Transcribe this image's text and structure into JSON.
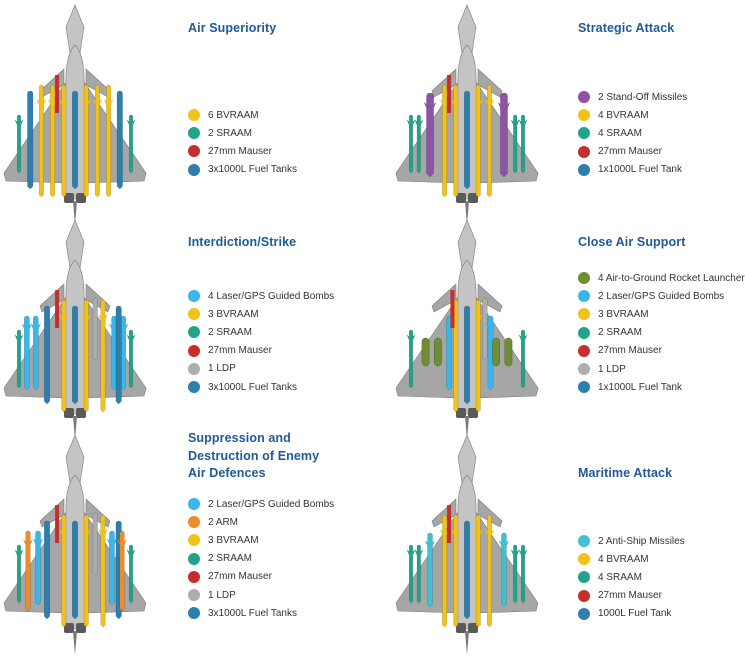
{
  "colors": {
    "title": "#1f5a99",
    "airframe": "#a6a6a6",
    "airframe_light": "#c4c4c4",
    "airframe_dark": "#7a7a7a"
  },
  "weapons": {
    "bvraam": {
      "color": "#f2c21b"
    },
    "sraam": {
      "color": "#21a48a"
    },
    "mauser": {
      "color": "#c62d2d"
    },
    "fuel_tank": {
      "color": "#2e7fad"
    },
    "stand_off": {
      "color": "#8d54a6"
    },
    "laser_gps": {
      "color": "#3cb5e8"
    },
    "ldp": {
      "color": "#adadad"
    },
    "rocket": {
      "color": "#6f8e35"
    },
    "arm": {
      "color": "#ee8b2a"
    },
    "anti_ship": {
      "color": "#41c0d4"
    }
  },
  "panels": [
    {
      "title": "Air Superiority",
      "legend": [
        {
          "label": "6 BVRAAM",
          "color": "#f2c21b"
        },
        {
          "label": "2 SRAAM",
          "color": "#21a48a"
        },
        {
          "label": "27mm Mauser",
          "color": "#c62d2d"
        },
        {
          "label": "3x1000L Fuel Tanks",
          "color": "#2e7fad"
        }
      ]
    },
    {
      "title": "Strategic Attack",
      "legend": [
        {
          "label": "2 Stand-Off Missiles",
          "color": "#8d54a6"
        },
        {
          "label": "4 BVRAAM",
          "color": "#f2c21b"
        },
        {
          "label": "4 SRAAM",
          "color": "#21a48a"
        },
        {
          "label": "27mm Mauser",
          "color": "#c62d2d"
        },
        {
          "label": "1x1000L Fuel Tank",
          "color": "#2e7fad"
        }
      ]
    },
    {
      "title": "Interdiction/Strike",
      "legend": [
        {
          "label": "4 Laser/GPS Guided Bombs",
          "color": "#3cb5e8"
        },
        {
          "label": "3 BVRAAM",
          "color": "#f2c21b"
        },
        {
          "label": "2 SRAAM",
          "color": "#21a48a"
        },
        {
          "label": "27mm Mauser",
          "color": "#c62d2d"
        },
        {
          "label": "1 LDP",
          "color": "#adadad"
        },
        {
          "label": "3x1000L Fuel Tanks",
          "color": "#2e7fad"
        }
      ]
    },
    {
      "title": "Close Air Support",
      "legend": [
        {
          "label": "4 Air-to-Ground Rocket Launcher",
          "color": "#6f8e35"
        },
        {
          "label": "2 Laser/GPS Guided Bombs",
          "color": "#3cb5e8"
        },
        {
          "label": "3 BVRAAM",
          "color": "#f2c21b"
        },
        {
          "label": "2 SRAAM",
          "color": "#21a48a"
        },
        {
          "label": "27mm Mauser",
          "color": "#c62d2d"
        },
        {
          "label": "1 LDP",
          "color": "#adadad"
        },
        {
          "label": "1x1000L Fuel Tank",
          "color": "#2e7fad"
        }
      ]
    },
    {
      "title_lines": [
        "Suppression and",
        "Destruction of Enemy",
        "Air Defences"
      ],
      "legend": [
        {
          "label": "2 Laser/GPS Guided Bombs",
          "color": "#3cb5e8"
        },
        {
          "label": "2 ARM",
          "color": "#ee8b2a"
        },
        {
          "label": "3 BVRAAM",
          "color": "#f2c21b"
        },
        {
          "label": "2 SRAAM",
          "color": "#21a48a"
        },
        {
          "label": "27mm Mauser",
          "color": "#c62d2d"
        },
        {
          "label": "1 LDP",
          "color": "#adadad"
        },
        {
          "label": "3x1000L Fuel Tanks",
          "color": "#2e7fad"
        }
      ]
    },
    {
      "title": "Maritime Attack",
      "legend": [
        {
          "label": "2 Anti-Ship Missiles",
          "color": "#41c0d4"
        },
        {
          "label": "4 BVRAAM",
          "color": "#f2c21b"
        },
        {
          "label": "4 SRAAM",
          "color": "#21a48a"
        },
        {
          "label": "27mm Mauser",
          "color": "#c62d2d"
        },
        {
          "label": "1000L Fuel Tank",
          "color": "#2e7fad"
        }
      ]
    }
  ],
  "loadouts": [
    [
      {
        "type": "sraam",
        "station": -5
      },
      {
        "type": "fuel_tank",
        "station": -4
      },
      {
        "type": "bvraam",
        "station": -3
      },
      {
        "type": "bvraam",
        "station": -2
      },
      {
        "type": "bvraam",
        "station": -1
      },
      {
        "type": "fuel_tank",
        "station": 0
      },
      {
        "type": "bvraam",
        "station": 1
      },
      {
        "type": "bvraam",
        "station": 2
      },
      {
        "type": "bvraam",
        "station": 3
      },
      {
        "type": "fuel_tank",
        "station": 4
      },
      {
        "type": "sraam",
        "station": 5
      },
      {
        "type": "mauser",
        "station": -1.6
      }
    ],
    [
      {
        "type": "sraam",
        "station": -5
      },
      {
        "type": "sraam",
        "station": -4.3
      },
      {
        "type": "stand_off",
        "station": -3.3
      },
      {
        "type": "bvraam",
        "station": -2
      },
      {
        "type": "bvraam",
        "station": -1
      },
      {
        "type": "fuel_tank",
        "station": 0
      },
      {
        "type": "bvraam",
        "station": 1
      },
      {
        "type": "bvraam",
        "station": 2
      },
      {
        "type": "stand_off",
        "station": 3.3
      },
      {
        "type": "sraam",
        "station": 4.3
      },
      {
        "type": "sraam",
        "station": 5
      },
      {
        "type": "mauser",
        "station": -1.6
      }
    ],
    [
      {
        "type": "sraam",
        "station": -5
      },
      {
        "type": "laser_gps",
        "station": -4.3
      },
      {
        "type": "laser_gps",
        "station": -3.5
      },
      {
        "type": "fuel_tank",
        "station": -2.5
      },
      {
        "type": "bvraam",
        "station": -1
      },
      {
        "type": "fuel_tank",
        "station": 0
      },
      {
        "type": "bvraam",
        "station": 1
      },
      {
        "type": "ldp",
        "station": 1.8
      },
      {
        "type": "bvraam",
        "station": 2.5
      },
      {
        "type": "laser_gps",
        "station": 3.5
      },
      {
        "type": "laser_gps",
        "station": 4.3
      },
      {
        "type": "fuel_tank",
        "station": 3.9
      },
      {
        "type": "sraam",
        "station": 5
      },
      {
        "type": "mauser",
        "station": -1.6
      }
    ],
    [
      {
        "type": "sraam",
        "station": -5
      },
      {
        "type": "rocket",
        "station": -3.7
      },
      {
        "type": "rocket",
        "station": -2.6
      },
      {
        "type": "laser_gps",
        "station": -1.6
      },
      {
        "type": "bvraam",
        "station": -1
      },
      {
        "type": "fuel_tank",
        "station": 0
      },
      {
        "type": "bvraam",
        "station": 1
      },
      {
        "type": "ldp",
        "station": 1.6
      },
      {
        "type": "laser_gps",
        "station": 2.1
      },
      {
        "type": "rocket",
        "station": 2.6
      },
      {
        "type": "rocket",
        "station": 3.7
      },
      {
        "type": "sraam",
        "station": 5
      },
      {
        "type": "mauser",
        "station": -1.3
      }
    ],
    [
      {
        "type": "sraam",
        "station": -5
      },
      {
        "type": "arm",
        "station": -4.2
      },
      {
        "type": "laser_gps",
        "station": -3.3
      },
      {
        "type": "fuel_tank",
        "station": -2.5
      },
      {
        "type": "bvraam",
        "station": -1
      },
      {
        "type": "fuel_tank",
        "station": 0
      },
      {
        "type": "bvraam",
        "station": 1
      },
      {
        "type": "ldp",
        "station": 1.8
      },
      {
        "type": "bvraam",
        "station": 2.5
      },
      {
        "type": "laser_gps",
        "station": 3.3
      },
      {
        "type": "fuel_tank",
        "station": 3.9
      },
      {
        "type": "arm",
        "station": 4.2
      },
      {
        "type": "sraam",
        "station": 5
      },
      {
        "type": "mauser",
        "station": -1.6
      }
    ],
    [
      {
        "type": "sraam",
        "station": -5
      },
      {
        "type": "sraam",
        "station": -4.3
      },
      {
        "type": "anti_ship",
        "station": -3.3
      },
      {
        "type": "bvraam",
        "station": -2
      },
      {
        "type": "bvraam",
        "station": -1
      },
      {
        "type": "fuel_tank",
        "station": 0
      },
      {
        "type": "bvraam",
        "station": 1
      },
      {
        "type": "bvraam",
        "station": 2
      },
      {
        "type": "anti_ship",
        "station": 3.3
      },
      {
        "type": "sraam",
        "station": 4.3
      },
      {
        "type": "sraam",
        "station": 5
      },
      {
        "type": "mauser",
        "station": -1.6
      }
    ]
  ]
}
